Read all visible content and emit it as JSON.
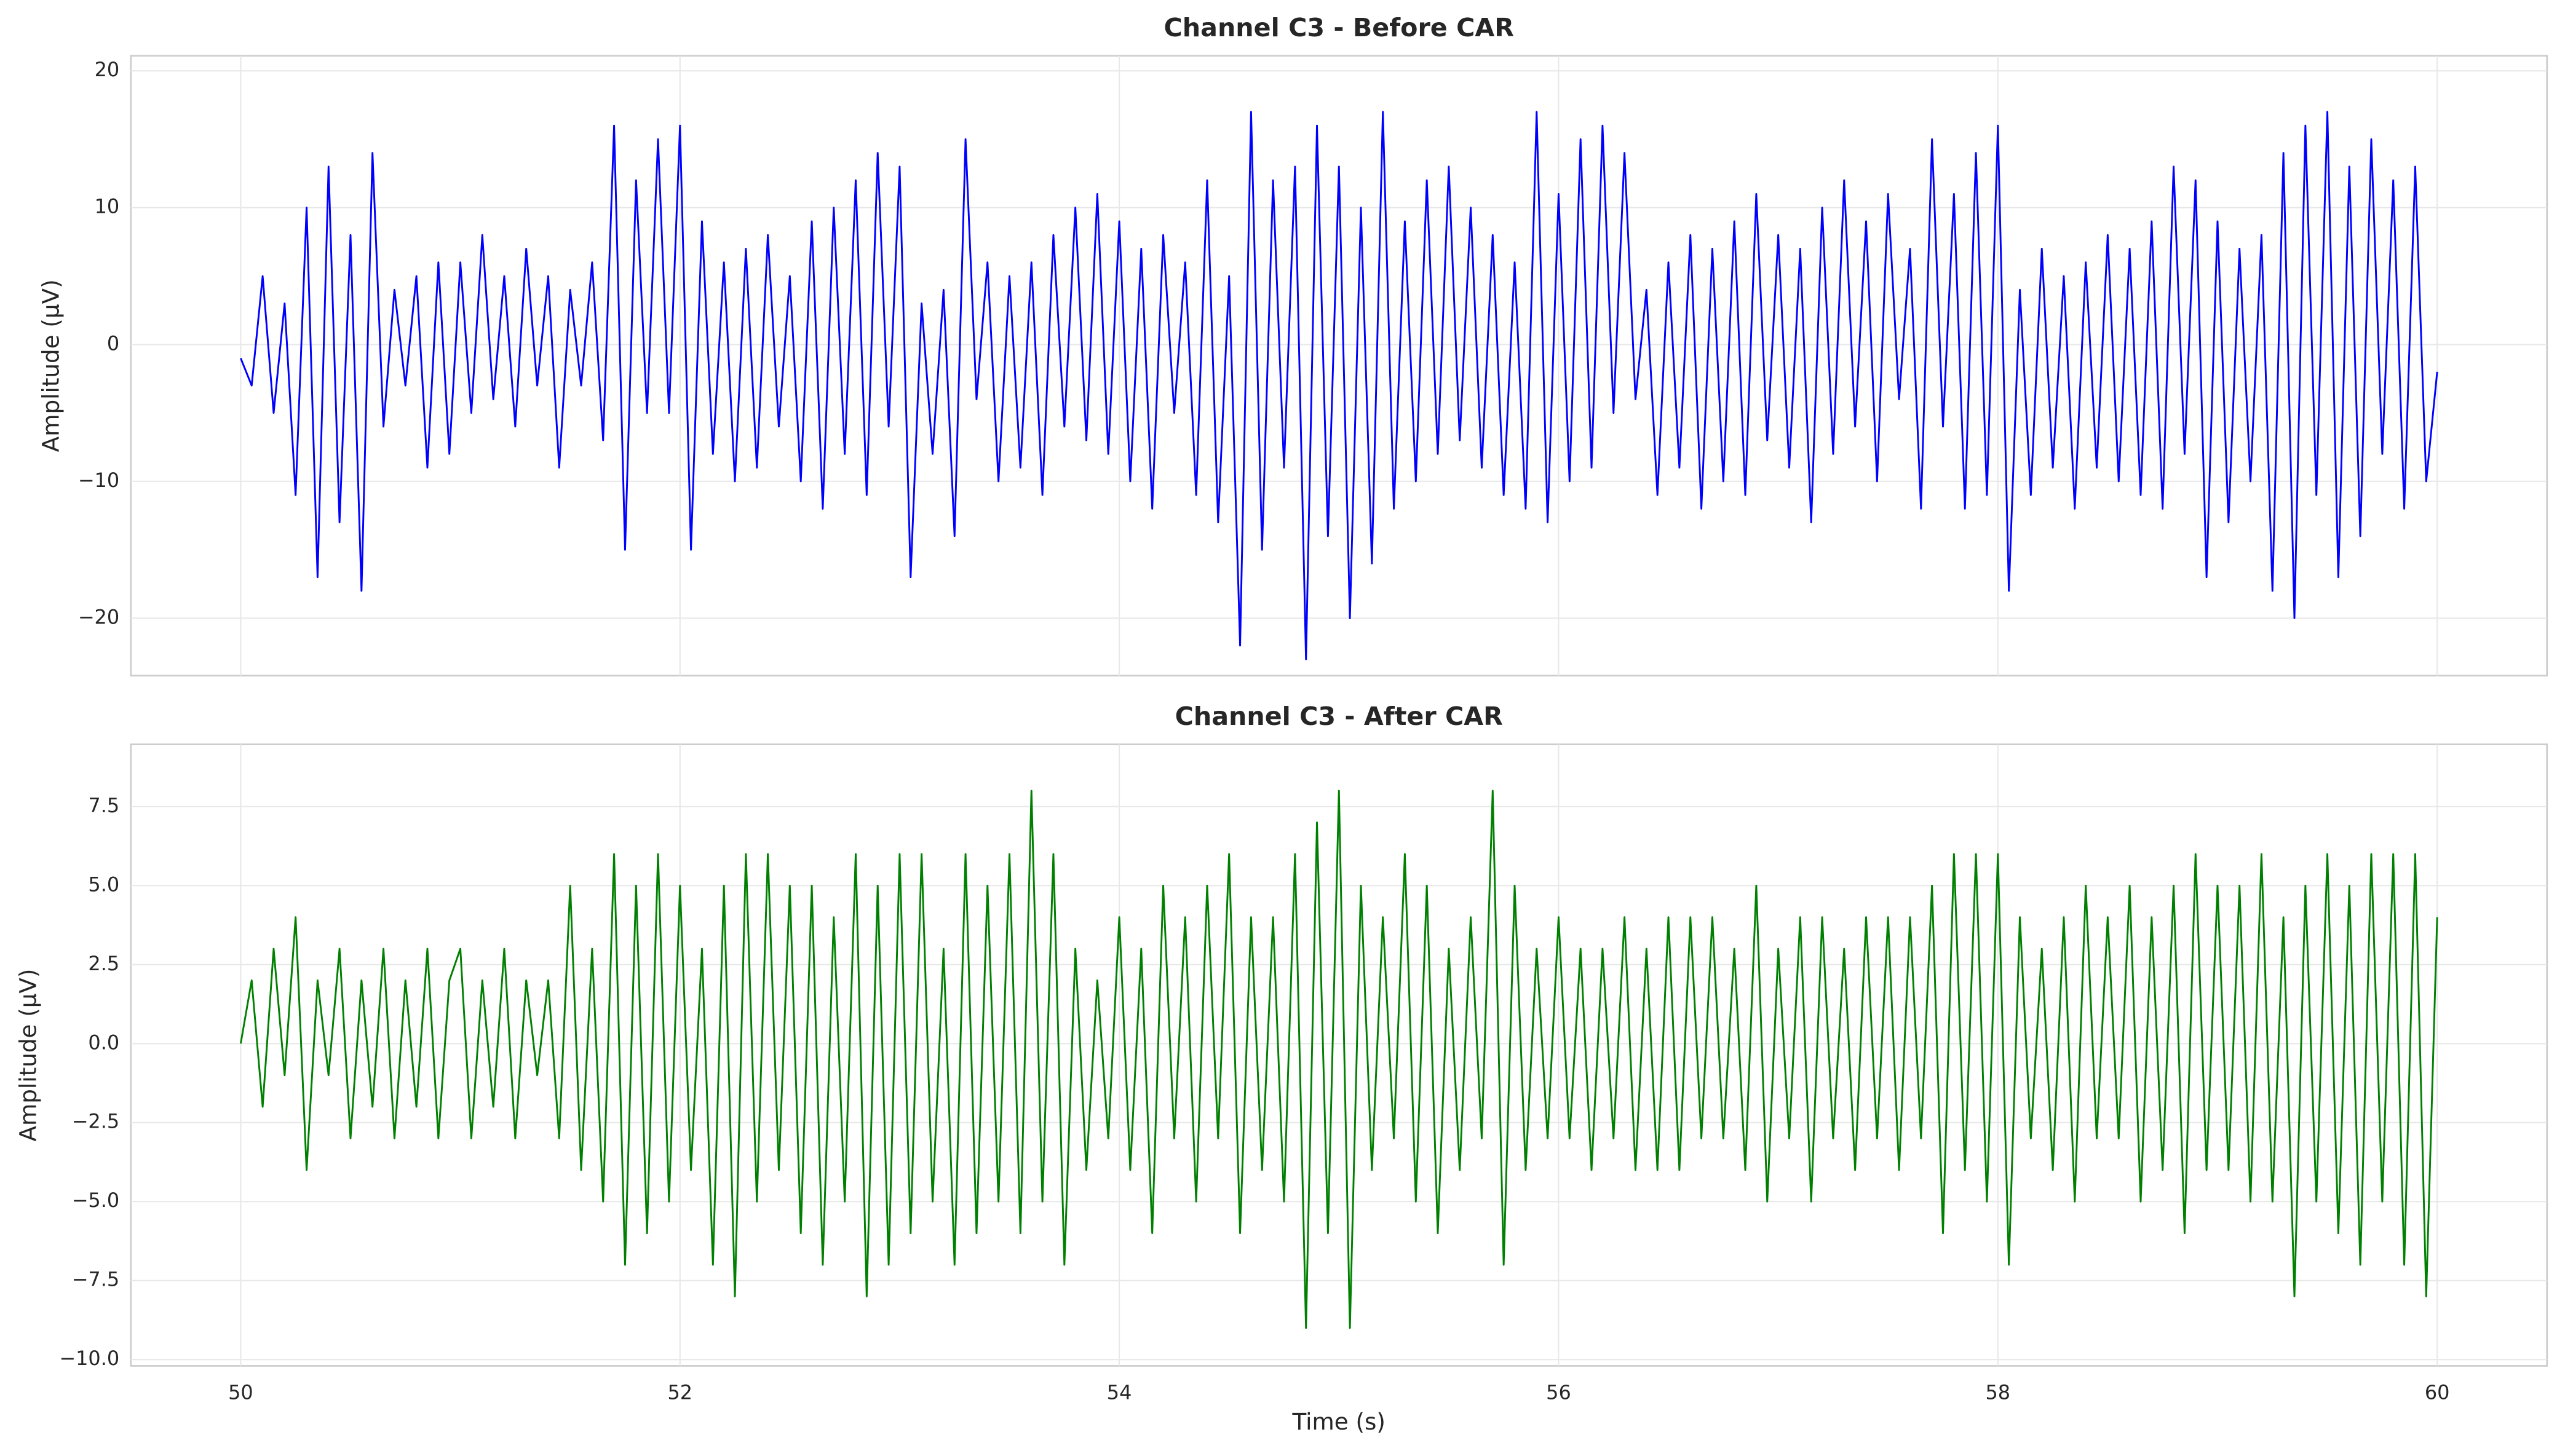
{
  "chart_data": [
    {
      "type": "line",
      "title": "Channel C3 - Before CAR",
      "ylabel": "Amplitude (μV)",
      "color": "#0000ff",
      "grid": true,
      "show_xticklabels": false,
      "xlim": [
        49.5,
        60.5
      ],
      "xticks": [
        50,
        52,
        54,
        56,
        58,
        60
      ],
      "ylim": [
        -24.2,
        21.1
      ],
      "yticks": [
        {
          "value": -20,
          "label": "−20"
        },
        {
          "value": -10,
          "label": "−10"
        },
        0,
        10,
        20
      ],
      "x": [
        50,
        50.05,
        50.1,
        50.15,
        50.2,
        50.25,
        50.3,
        50.35,
        50.4,
        50.45,
        50.5,
        50.55,
        50.6,
        50.65,
        50.7,
        50.75,
        50.8,
        50.85,
        50.9,
        50.95,
        51,
        51.05,
        51.1,
        51.15,
        51.2,
        51.25,
        51.3,
        51.35,
        51.4,
        51.45,
        51.5,
        51.55,
        51.6,
        51.65,
        51.7,
        51.75,
        51.8,
        51.85,
        51.9,
        51.95,
        52,
        52.05,
        52.1,
        52.15,
        52.2,
        52.25,
        52.3,
        52.35,
        52.4,
        52.45,
        52.5,
        52.55,
        52.6,
        52.65,
        52.7,
        52.75,
        52.8,
        52.85,
        52.9,
        52.95,
        53,
        53.05,
        53.1,
        53.15,
        53.2,
        53.25,
        53.3,
        53.35,
        53.4,
        53.45,
        53.5,
        53.55,
        53.6,
        53.65,
        53.7,
        53.75,
        53.8,
        53.85,
        53.9,
        53.95,
        54,
        54.05,
        54.1,
        54.15,
        54.2,
        54.25,
        54.3,
        54.35,
        54.4,
        54.45,
        54.5,
        54.55,
        54.6,
        54.65,
        54.7,
        54.75,
        54.8,
        54.85,
        54.9,
        54.95,
        55,
        55.05,
        55.1,
        55.15,
        55.2,
        55.25,
        55.3,
        55.35,
        55.4,
        55.45,
        55.5,
        55.55,
        55.6,
        55.65,
        55.7,
        55.75,
        55.8,
        55.85,
        55.9,
        55.95,
        56,
        56.05,
        56.1,
        56.15,
        56.2,
        56.25,
        56.3,
        56.35,
        56.4,
        56.45,
        56.5,
        56.55,
        56.6,
        56.65,
        56.7,
        56.75,
        56.8,
        56.85,
        56.9,
        56.95,
        57,
        57.05,
        57.1,
        57.15,
        57.2,
        57.25,
        57.3,
        57.35,
        57.4,
        57.45,
        57.5,
        57.55,
        57.6,
        57.65,
        57.7,
        57.75,
        57.8,
        57.85,
        57.9,
        57.95,
        58,
        58.05,
        58.1,
        58.15,
        58.2,
        58.25,
        58.3,
        58.35,
        58.4,
        58.45,
        58.5,
        58.55,
        58.6,
        58.65,
        58.7,
        58.75,
        58.8,
        58.85,
        58.9,
        58.95,
        59,
        59.05,
        59.1,
        59.15,
        59.2,
        59.25,
        59.3,
        59.35,
        59.4,
        59.45,
        59.5,
        59.55,
        59.6,
        59.65,
        59.7,
        59.75,
        59.8,
        59.85,
        59.9,
        59.95,
        60
      ],
      "values": [
        -1,
        -3,
        5,
        -5,
        3,
        -11,
        10,
        -17,
        13,
        -13,
        8,
        -18,
        14,
        -6,
        4,
        -3,
        5,
        -9,
        6,
        -8,
        6,
        -5,
        8,
        -4,
        5,
        -6,
        7,
        -3,
        5,
        -9,
        4,
        -3,
        6,
        -7,
        16,
        -15,
        12,
        -5,
        15,
        -5,
        16,
        -15,
        9,
        -8,
        6,
        -10,
        7,
        -9,
        8,
        -6,
        5,
        -10,
        9,
        -12,
        10,
        -8,
        12,
        -11,
        14,
        -6,
        13,
        -17,
        3,
        -8,
        4,
        -14,
        15,
        -4,
        6,
        -10,
        5,
        -9,
        6,
        -11,
        8,
        -6,
        10,
        -7,
        11,
        -8,
        9,
        -10,
        7,
        -12,
        8,
        -5,
        6,
        -11,
        12,
        -13,
        5,
        -22,
        17,
        -15,
        12,
        -9,
        13,
        -23,
        16,
        -14,
        13,
        -20,
        10,
        -16,
        17,
        -12,
        9,
        -10,
        12,
        -8,
        13,
        -7,
        10,
        -9,
        8,
        -11,
        6,
        -12,
        17,
        -13,
        11,
        -10,
        15,
        -9,
        16,
        -5,
        14,
        -4,
        4,
        -11,
        6,
        -9,
        8,
        -12,
        7,
        -10,
        9,
        -11,
        11,
        -7,
        8,
        -9,
        7,
        -13,
        10,
        -8,
        12,
        -6,
        9,
        -10,
        11,
        -4,
        7,
        -12,
        15,
        -6,
        11,
        -12,
        14,
        -11,
        16,
        -18,
        4,
        -11,
        7,
        -9,
        5,
        -12,
        6,
        -9,
        8,
        -10,
        7,
        -11,
        9,
        -12,
        13,
        -8,
        12,
        -17,
        9,
        -13,
        7,
        -10,
        8,
        -18,
        14,
        -20,
        16,
        -11,
        17,
        -17,
        13,
        -14,
        15,
        -8,
        12,
        -12,
        13,
        -10,
        -2
      ]
    },
    {
      "type": "line",
      "title": "Channel C3 - After CAR",
      "ylabel": "Amplitude (μV)",
      "xlabel": "Time (s)",
      "color": "#008000",
      "grid": true,
      "show_xticklabels": true,
      "xlim": [
        49.5,
        60.5
      ],
      "xticks": [
        50,
        52,
        54,
        56,
        58,
        60
      ],
      "ylim": [
        -10.2,
        9.47
      ],
      "yticks": [
        {
          "value": -10,
          "label": "−10.0"
        },
        {
          "value": -7.5,
          "label": "−7.5"
        },
        {
          "value": -5,
          "label": "−5.0"
        },
        {
          "value": -2.5,
          "label": "−2.5"
        },
        {
          "value": 0,
          "label": "0.0"
        },
        2.5,
        {
          "value": 5,
          "label": "5.0"
        },
        7.5
      ],
      "x": [
        50,
        50.05,
        50.1,
        50.15,
        50.2,
        50.25,
        50.3,
        50.35,
        50.4,
        50.45,
        50.5,
        50.55,
        50.6,
        50.65,
        50.7,
        50.75,
        50.8,
        50.85,
        50.9,
        50.95,
        51,
        51.05,
        51.1,
        51.15,
        51.2,
        51.25,
        51.3,
        51.35,
        51.4,
        51.45,
        51.5,
        51.55,
        51.6,
        51.65,
        51.7,
        51.75,
        51.8,
        51.85,
        51.9,
        51.95,
        52,
        52.05,
        52.1,
        52.15,
        52.2,
        52.25,
        52.3,
        52.35,
        52.4,
        52.45,
        52.5,
        52.55,
        52.6,
        52.65,
        52.7,
        52.75,
        52.8,
        52.85,
        52.9,
        52.95,
        53,
        53.05,
        53.1,
        53.15,
        53.2,
        53.25,
        53.3,
        53.35,
        53.4,
        53.45,
        53.5,
        53.55,
        53.6,
        53.65,
        53.7,
        53.75,
        53.8,
        53.85,
        53.9,
        53.95,
        54,
        54.05,
        54.1,
        54.15,
        54.2,
        54.25,
        54.3,
        54.35,
        54.4,
        54.45,
        54.5,
        54.55,
        54.6,
        54.65,
        54.7,
        54.75,
        54.8,
        54.85,
        54.9,
        54.95,
        55,
        55.05,
        55.1,
        55.15,
        55.2,
        55.25,
        55.3,
        55.35,
        55.4,
        55.45,
        55.5,
        55.55,
        55.6,
        55.65,
        55.7,
        55.75,
        55.8,
        55.85,
        55.9,
        55.95,
        56,
        56.05,
        56.1,
        56.15,
        56.2,
        56.25,
        56.3,
        56.35,
        56.4,
        56.45,
        56.5,
        56.55,
        56.6,
        56.65,
        56.7,
        56.75,
        56.8,
        56.85,
        56.9,
        56.95,
        57,
        57.05,
        57.1,
        57.15,
        57.2,
        57.25,
        57.3,
        57.35,
        57.4,
        57.45,
        57.5,
        57.55,
        57.6,
        57.65,
        57.7,
        57.75,
        57.8,
        57.85,
        57.9,
        57.95,
        58,
        58.05,
        58.1,
        58.15,
        58.2,
        58.25,
        58.3,
        58.35,
        58.4,
        58.45,
        58.5,
        58.55,
        58.6,
        58.65,
        58.7,
        58.75,
        58.8,
        58.85,
        58.9,
        58.95,
        59,
        59.05,
        59.1,
        59.15,
        59.2,
        59.25,
        59.3,
        59.35,
        59.4,
        59.45,
        59.5,
        59.55,
        59.6,
        59.65,
        59.7,
        59.75,
        59.8,
        59.85,
        59.9,
        59.95,
        60
      ],
      "values": [
        0,
        2,
        -2,
        3,
        -1,
        4,
        -4,
        2,
        -1,
        3,
        -3,
        2,
        -2,
        3,
        -3,
        2,
        -2,
        3,
        -3,
        2,
        3,
        -3,
        2,
        -2,
        3,
        -3,
        2,
        -1,
        2,
        -3,
        5,
        -4,
        3,
        -5,
        6,
        -7,
        5,
        -6,
        6,
        -5,
        5,
        -4,
        3,
        -7,
        5,
        -8,
        6,
        -5,
        6,
        -4,
        5,
        -6,
        5,
        -7,
        4,
        -5,
        6,
        -8,
        5,
        -7,
        6,
        -6,
        6,
        -5,
        3,
        -7,
        6,
        -6,
        5,
        -5,
        6,
        -6,
        8,
        -5,
        6,
        -7,
        3,
        -4,
        2,
        -3,
        4,
        -4,
        3,
        -6,
        5,
        -3,
        4,
        -5,
        5,
        -3,
        6,
        -6,
        4,
        -4,
        4,
        -5,
        6,
        -9,
        7,
        -6,
        8,
        -9,
        5,
        -4,
        4,
        -3,
        6,
        -5,
        5,
        -6,
        3,
        -4,
        4,
        -3,
        8,
        -7,
        5,
        -4,
        3,
        -3,
        4,
        -3,
        3,
        -4,
        3,
        -3,
        4,
        -4,
        3,
        -4,
        4,
        -4,
        4,
        -3,
        4,
        -3,
        3,
        -4,
        5,
        -5,
        3,
        -3,
        4,
        -5,
        4,
        -3,
        3,
        -4,
        4,
        -3,
        4,
        -4,
        4,
        -3,
        5,
        -6,
        6,
        -4,
        6,
        -5,
        6,
        -7,
        4,
        -3,
        3,
        -4,
        4,
        -5,
        5,
        -3,
        4,
        -3,
        5,
        -5,
        4,
        -4,
        5,
        -6,
        6,
        -4,
        5,
        -4,
        5,
        -5,
        6,
        -5,
        4,
        -8,
        5,
        -5,
        6,
        -6,
        5,
        -7,
        6,
        -5,
        6,
        -7,
        6,
        -8,
        4
      ]
    }
  ]
}
